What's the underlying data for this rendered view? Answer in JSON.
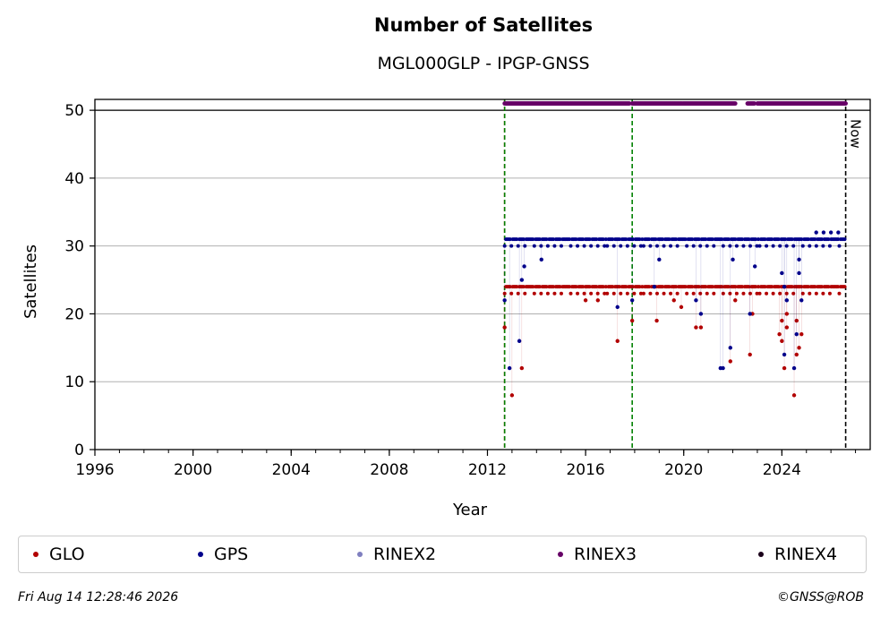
{
  "chart_data": {
    "type": "scatter",
    "title": "Number of Satellites",
    "subtitle": "MGL000GLP - IPGP-GNSS",
    "xlabel": "Year",
    "ylabel": "Satellites",
    "xlim": [
      1996,
      2027.6
    ],
    "ylim": [
      0,
      51.6
    ],
    "xticks": [
      "1996",
      "2000",
      "2004",
      "2008",
      "2012",
      "2016",
      "2020",
      "2024"
    ],
    "yticks": [
      "0",
      "10",
      "20",
      "30",
      "40",
      "50"
    ],
    "grid": "horizontal",
    "ref_line_y": 50,
    "vlines": [
      {
        "x": 2012.7,
        "color": "#cc0000",
        "style": "dashed"
      },
      {
        "x": 2012.7,
        "color": "#008000",
        "style": "dashed"
      },
      {
        "x": 2017.9,
        "color": "#008000",
        "style": "dashed"
      }
    ],
    "now_marker": {
      "x": 2026.6,
      "label": "Now"
    },
    "legend_position": "below",
    "series": [
      {
        "name": "GLO",
        "color": "#b20000",
        "baseline": [
          2012.7,
          2026.6,
          24,
          23
        ],
        "points": [
          [
            2012.7,
            18
          ],
          [
            2013.0,
            8
          ],
          [
            2013.4,
            12
          ],
          [
            2017.3,
            16
          ],
          [
            2017.9,
            19
          ],
          [
            2018.9,
            19
          ],
          [
            2019.9,
            21
          ],
          [
            2020.5,
            18
          ],
          [
            2020.7,
            18
          ],
          [
            2021.9,
            13
          ],
          [
            2022.1,
            22
          ],
          [
            2022.7,
            14
          ],
          [
            2022.8,
            20
          ],
          [
            2023.9,
            17
          ],
          [
            2024.0,
            16
          ],
          [
            2024.1,
            12
          ],
          [
            2024.2,
            18
          ],
          [
            2024.5,
            8
          ],
          [
            2024.6,
            14
          ],
          [
            2024.7,
            15
          ],
          [
            2024.8,
            17
          ],
          [
            2024.0,
            19
          ],
          [
            2024.2,
            20
          ],
          [
            2024.6,
            19
          ],
          [
            2019.6,
            22
          ],
          [
            2016.0,
            22
          ],
          [
            2016.5,
            22
          ]
        ]
      },
      {
        "name": "GPS",
        "color": "#00008b",
        "baseline": [
          2012.7,
          2026.6,
          31,
          30
        ],
        "points": [
          [
            2012.7,
            22
          ],
          [
            2012.9,
            12
          ],
          [
            2013.3,
            16
          ],
          [
            2013.4,
            25
          ],
          [
            2013.5,
            27
          ],
          [
            2017.3,
            21
          ],
          [
            2017.9,
            22
          ],
          [
            2018.8,
            24
          ],
          [
            2020.5,
            22
          ],
          [
            2020.7,
            20
          ],
          [
            2021.5,
            12
          ],
          [
            2021.6,
            12
          ],
          [
            2021.9,
            15
          ],
          [
            2022.7,
            20
          ],
          [
            2022.9,
            27
          ],
          [
            2024.1,
            14
          ],
          [
            2024.2,
            22
          ],
          [
            2024.5,
            12
          ],
          [
            2024.6,
            17
          ],
          [
            2024.8,
            22
          ],
          [
            2024.0,
            26
          ],
          [
            2024.1,
            24
          ],
          [
            2024.7,
            26
          ],
          [
            2024.7,
            28
          ],
          [
            2025.4,
            32
          ],
          [
            2025.7,
            32
          ],
          [
            2026.0,
            32
          ],
          [
            2026.3,
            32
          ],
          [
            2014.2,
            28
          ],
          [
            2019.0,
            28
          ],
          [
            2022.0,
            28
          ]
        ]
      },
      {
        "name": "RINEX2",
        "color": "#7f7fbf",
        "points": []
      },
      {
        "name": "RINEX3",
        "color": "#660066",
        "segments": [
          [
            2012.7,
            2017.8,
            51
          ],
          [
            2017.9,
            2022.1,
            51
          ],
          [
            2022.6,
            2022.9,
            51
          ],
          [
            2023.0,
            2026.6,
            51
          ]
        ],
        "points": []
      },
      {
        "name": "RINEX4",
        "color": "#1a001a",
        "points": []
      }
    ]
  },
  "footer": {
    "timestamp": "Fri Aug 14 12:28:46 2026",
    "credit": "©GNSS@ROB"
  }
}
